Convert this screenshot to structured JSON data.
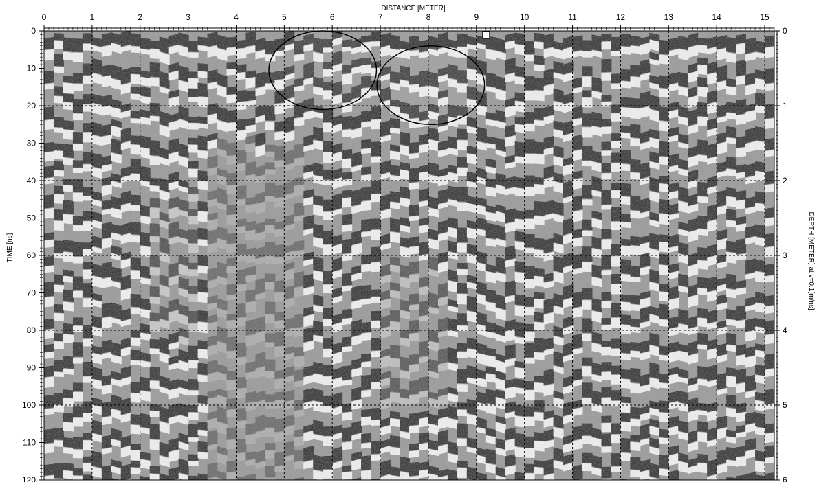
{
  "chart_data": {
    "type": "heatmap",
    "description_free": true,
    "xlabel": "DISTANCE [METER]",
    "ylabel_left": "TIME [ns]",
    "ylabel_right": "DEPTH [METER] at v=0.1[m/ns]",
    "x_ticks": [
      "0",
      "1",
      "2",
      "3",
      "4",
      "5",
      "6",
      "7",
      "8",
      "9",
      "10",
      "11",
      "12",
      "13",
      "14",
      "15"
    ],
    "y_ticks_left": [
      "0",
      "10",
      "20",
      "30",
      "40",
      "50",
      "60",
      "70",
      "80",
      "90",
      "100",
      "110",
      "120"
    ],
    "y_ticks_right": [
      "0",
      "1",
      "2",
      "3",
      "4",
      "5",
      "6"
    ],
    "xlim": [
      0,
      15.2
    ],
    "ylim_time": [
      0,
      120
    ],
    "ylim_depth": [
      0,
      6
    ],
    "grid": true,
    "colormap": [
      "#000000",
      "#ffffff"
    ],
    "annotations": [
      {
        "shape": "ellipse",
        "cx": 5.8,
        "cy": 10.5,
        "rx": 1.12,
        "ry": 10.5
      },
      {
        "shape": "ellipse",
        "cx": 8.05,
        "cy": 14.5,
        "rx": 1.12,
        "ry": 10.5
      }
    ],
    "marker": {
      "shape": "square",
      "x": 9.2,
      "y": 0.5
    }
  }
}
